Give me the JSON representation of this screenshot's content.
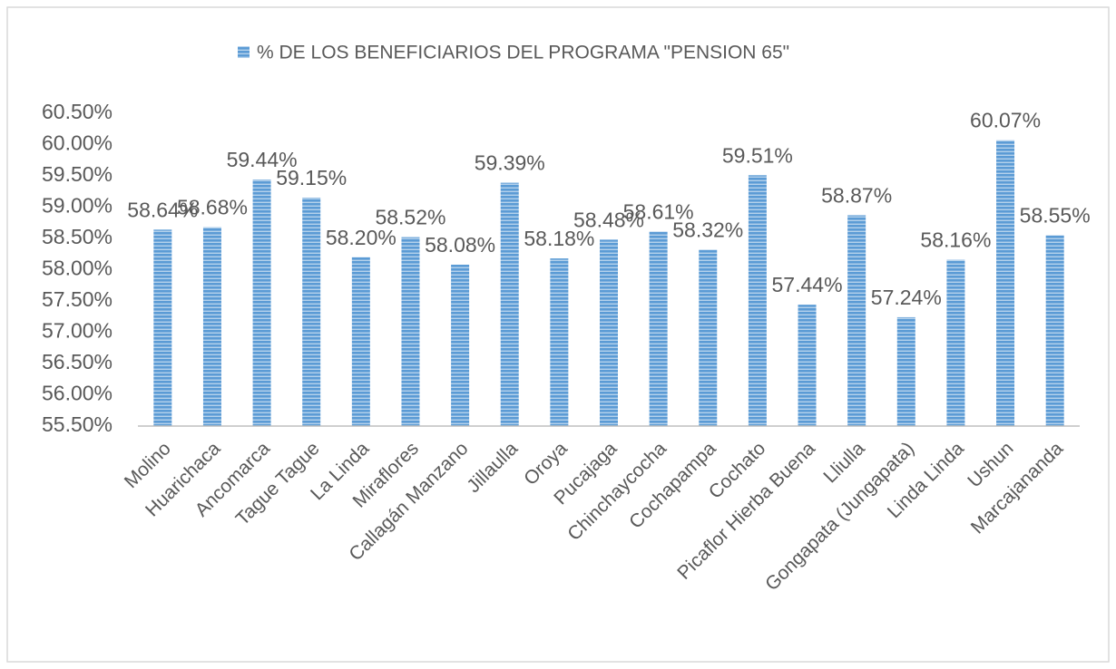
{
  "chart_data": {
    "type": "bar",
    "categories": [
      "Molino",
      "Huarichaca",
      "Ancomarca",
      "Tague Tague",
      "La Linda",
      "Miraflores",
      "Callagán Manzano",
      "Jillaulla",
      "Oroya",
      "Pucajaga",
      "Chinchaycocha",
      "Cochapampa",
      "Cochato",
      "Picaflor Hierba Buena",
      "Lliulla",
      "Gongapata (Jungapata)",
      "Linda Linda",
      "Ushun",
      "Marcajananda"
    ],
    "series": [
      {
        "name": "% DE LOS BENEFICIARIOS DEL PROGRAMA \"PENSION 65\"",
        "color": "#5b9bd5",
        "values": [
          58.64,
          58.68,
          59.44,
          59.15,
          58.2,
          58.52,
          58.08,
          59.39,
          58.18,
          58.48,
          58.61,
          58.32,
          59.51,
          57.44,
          58.87,
          57.24,
          58.16,
          60.07,
          58.55
        ],
        "value_labels": [
          "58.64%",
          "58.68%",
          "59.44%",
          "59.15%",
          "58.20%",
          "58.52%",
          "58.08%",
          "59.39%",
          "58.18%",
          "58.48%",
          "58.61%",
          "58.32%",
          "59.51%",
          "57.44%",
          "58.87%",
          "57.24%",
          "58.16%",
          "60.07%",
          "58.55%"
        ]
      }
    ],
    "ylim": [
      55.5,
      60.5
    ],
    "yticks": [
      {
        "value": 55.5,
        "label": "55.50%"
      },
      {
        "value": 56,
        "label": "56.00%"
      },
      {
        "value": 56.5,
        "label": "56.50%"
      },
      {
        "value": 57,
        "label": "57.00%"
      },
      {
        "value": 57.5,
        "label": "57.50%"
      },
      {
        "value": 58,
        "label": "58.00%"
      },
      {
        "value": 58.5,
        "label": "58.50%"
      },
      {
        "value": 59,
        "label": "59.00%"
      },
      {
        "value": 59.5,
        "label": "59.50%"
      },
      {
        "value": 60,
        "label": "60.00%"
      },
      {
        "value": 60.5,
        "label": "60.50%"
      }
    ],
    "grid": false,
    "legend": "top"
  }
}
